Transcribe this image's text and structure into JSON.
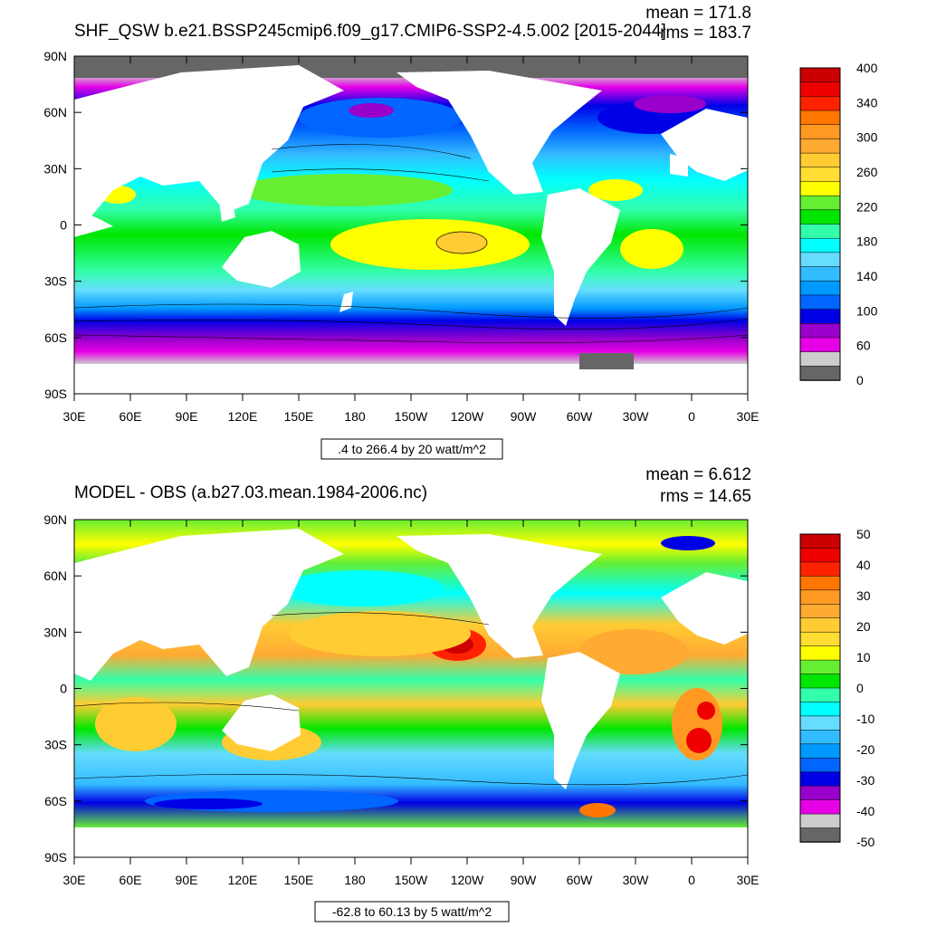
{
  "panels": [
    {
      "title": "SHF_QSW b.e21.BSSP245cmip6.f09_g17.CMIP6-SSP2-4.5.002 [2015-2044]",
      "mean_label": "mean = 171.8",
      "rms_label": "rms = 183.7",
      "info_box": ".4 to 266.4 by 20 watt/m^2",
      "lat_ticks": [
        "90N",
        "60N",
        "30N",
        "0",
        "30S",
        "60S",
        "90S"
      ],
      "lon_ticks": [
        "30E",
        "60E",
        "90E",
        "120E",
        "150E",
        "180",
        "150W",
        "120W",
        "90W",
        "60W",
        "30W",
        "0",
        "30E"
      ],
      "colorbar": {
        "colors": [
          "#666666",
          "#cccccc",
          "#e600e6",
          "#9900cc",
          "#0000e6",
          "#0066ff",
          "#0099ff",
          "#33bbff",
          "#66ddff",
          "#00ffff",
          "#33ffaa",
          "#00e600",
          "#66ee33",
          "#ffff00",
          "#ffdd33",
          "#ffcc33",
          "#ffaa33",
          "#ff9922",
          "#ff7700",
          "#ff2200",
          "#ee0000",
          "#cc0000"
        ],
        "labels": [
          "400",
          "340",
          "300",
          "260",
          "220",
          "180",
          "140",
          "100",
          "60",
          "0"
        ]
      }
    },
    {
      "title": "MODEL - OBS (a.b27.03.mean.1984-2006.nc)",
      "mean_label": "mean = 6.612",
      "rms_label": "rms = 14.65",
      "info_box": "-62.8 to 60.13 by 5 watt/m^2",
      "lat_ticks": [
        "90N",
        "60N",
        "30N",
        "0",
        "30S",
        "60S",
        "90S"
      ],
      "lon_ticks": [
        "30E",
        "60E",
        "90E",
        "120E",
        "150E",
        "180",
        "150W",
        "120W",
        "90W",
        "60W",
        "30W",
        "0",
        "30E"
      ],
      "colorbar": {
        "colors": [
          "#666666",
          "#cccccc",
          "#e600e6",
          "#9900cc",
          "#0000e6",
          "#0066ff",
          "#0099ff",
          "#33bbff",
          "#66ddff",
          "#00ffff",
          "#33ffaa",
          "#00e600",
          "#66ee33",
          "#ffff00",
          "#ffdd33",
          "#ffcc33",
          "#ffaa33",
          "#ff9922",
          "#ff7700",
          "#ff2200",
          "#ee0000",
          "#cc0000"
        ],
        "labels": [
          "50",
          "40",
          "30",
          "20",
          "10",
          "0",
          "-10",
          "-20",
          "-30",
          "-40",
          "-50"
        ]
      }
    }
  ]
}
